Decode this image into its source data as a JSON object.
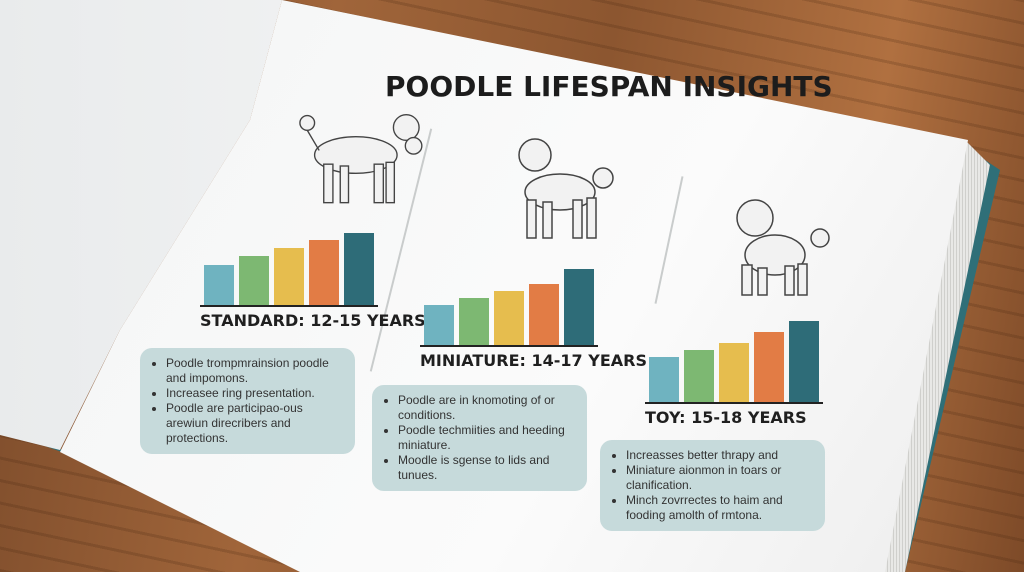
{
  "title": "POODLE LIFESPAN INSIGHTS",
  "colors": {
    "blue": "#6fb3c0",
    "green": "#7db872",
    "yellow": "#e6bd4e",
    "orange": "#e27c45",
    "teal": "#2e6c78",
    "panel": "#c6dadb",
    "cover": "#2f6f78"
  },
  "sections": [
    {
      "label": "STANDARD: 12-15 YEARS",
      "bar_levels": [
        0.45,
        0.55,
        0.63,
        0.72,
        0.8
      ],
      "bullets": [
        "Poodle trompmrainsion poodle and impomons.",
        "Increasee ring presentation.",
        "Poodle are participao-ous arewiun direcribers and protections."
      ]
    },
    {
      "label": "MINIATURE: 14-17 YEARS",
      "bar_levels": [
        0.45,
        0.52,
        0.6,
        0.68,
        0.85
      ],
      "bullets": [
        "Poodle are in knomoting of or conditions.",
        "Poodle techmiities and heeding miniature.",
        "Moodle is sgense to lids and tunues."
      ]
    },
    {
      "label": "TOY: 15-18 YEARS",
      "bar_levels": [
        0.5,
        0.58,
        0.66,
        0.78,
        0.9
      ],
      "bullets": [
        "Increasses better thrapy and",
        "Miniature aionmon in toars or clanification.",
        "Minch zovrrectes to haim and fooding amolth of rmtona."
      ]
    }
  ]
}
